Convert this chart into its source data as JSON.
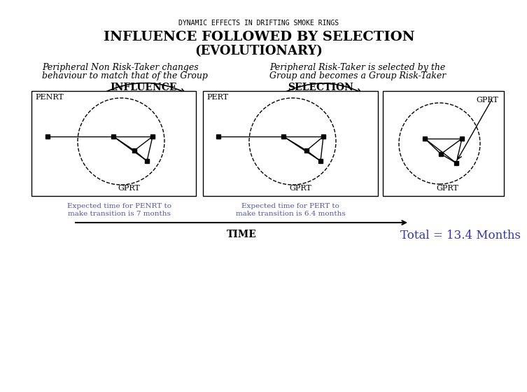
{
  "title_small": "DYNAMIC EFFECTS IN DRIFTING SMOKE RINGS",
  "title_main1": "INFLUENCE FOLLOWED BY SELECTION",
  "title_main2": "(EVOLUTIONARY)",
  "desc_left1": "Peripheral Non Risk-Taker changes",
  "desc_left2": "behaviour to match that of the Group",
  "desc_right1": "Peripheral Risk-Taker is selected by the",
  "desc_right2": "Group and becomes a Group Risk-Taker",
  "label_influence": "INFLUENCE",
  "label_selection": "SELECTION",
  "box1_label_top": "PENRT",
  "box1_label_bot": "GPRT",
  "box2_label_top": "PERT",
  "box2_label_bot": "GPRT",
  "box3_label_top": "GPRT",
  "box3_label_bot": "GPRT",
  "caption_left1": "Expected time for PENRT to",
  "caption_left2": "make transition is 7 months",
  "caption_right1": "Expected time for PERT to",
  "caption_right2": "make transition is 6.4 months",
  "time_label": "TIME",
  "total_label": "Total = 13.4 Months",
  "total_color": "#3333BB",
  "bg_color": "#ffffff",
  "text_color": "#000000",
  "caption_color": "#5555AA"
}
